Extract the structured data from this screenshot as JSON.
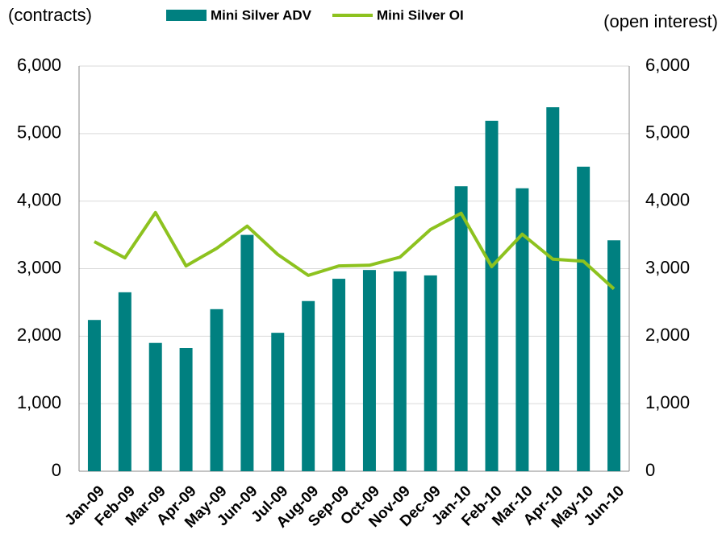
{
  "chart_data": {
    "type": "bar_line",
    "y_label": "(contracts)",
    "y2_label": "(open interest)",
    "categories": [
      "Jan-09",
      "Feb-09",
      "Mar-09",
      "Apr-09",
      "May-09",
      "Jun-09",
      "Jul-09",
      "Aug-09",
      "Sep-09",
      "Oct-09",
      "Nov-09",
      "Dec-09",
      "Jan-10",
      "Feb-10",
      "Mar-10",
      "Apr-10",
      "May-10",
      "Jun-10"
    ],
    "series": [
      {
        "name": "Mini Silver ADV",
        "color": "#008080",
        "type": "bar",
        "values": [
          2240,
          2650,
          1900,
          1825,
          2400,
          3500,
          2050,
          2520,
          2850,
          2980,
          2960,
          2900,
          4220,
          5190,
          4190,
          5390,
          4510,
          3420
        ]
      },
      {
        "name": "Mini Silver OI",
        "color": "#8dc21f",
        "type": "line",
        "axis": "y2",
        "values": [
          3400,
          3160,
          3830,
          3040,
          3300,
          3630,
          3210,
          2900,
          3040,
          3050,
          3170,
          3580,
          3820,
          3030,
          3510,
          3140,
          3110,
          2700
        ]
      }
    ],
    "ylim": [
      0,
      6000
    ],
    "yticks": [
      0,
      {
        "value": 1000,
        "label": "1,000"
      },
      {
        "value": 2000,
        "label": "2,000"
      },
      {
        "value": 3000,
        "label": "3,000"
      },
      {
        "value": 4000,
        "label": "4,000"
      },
      {
        "value": 5000,
        "label": "5,000"
      },
      {
        "value": 6000,
        "label": "6,000"
      }
    ],
    "y2lim": [
      0,
      6000
    ],
    "y2ticks": [
      0,
      {
        "value": 1000,
        "label": "1,000"
      },
      {
        "value": 2000,
        "label": "2,000"
      },
      {
        "value": 3000,
        "label": "3,000"
      },
      {
        "value": 4000,
        "label": "4,000"
      },
      {
        "value": 5000,
        "label": "5,000"
      },
      {
        "value": 6000,
        "label": "6,000"
      }
    ],
    "grid": true,
    "legend": "top"
  }
}
